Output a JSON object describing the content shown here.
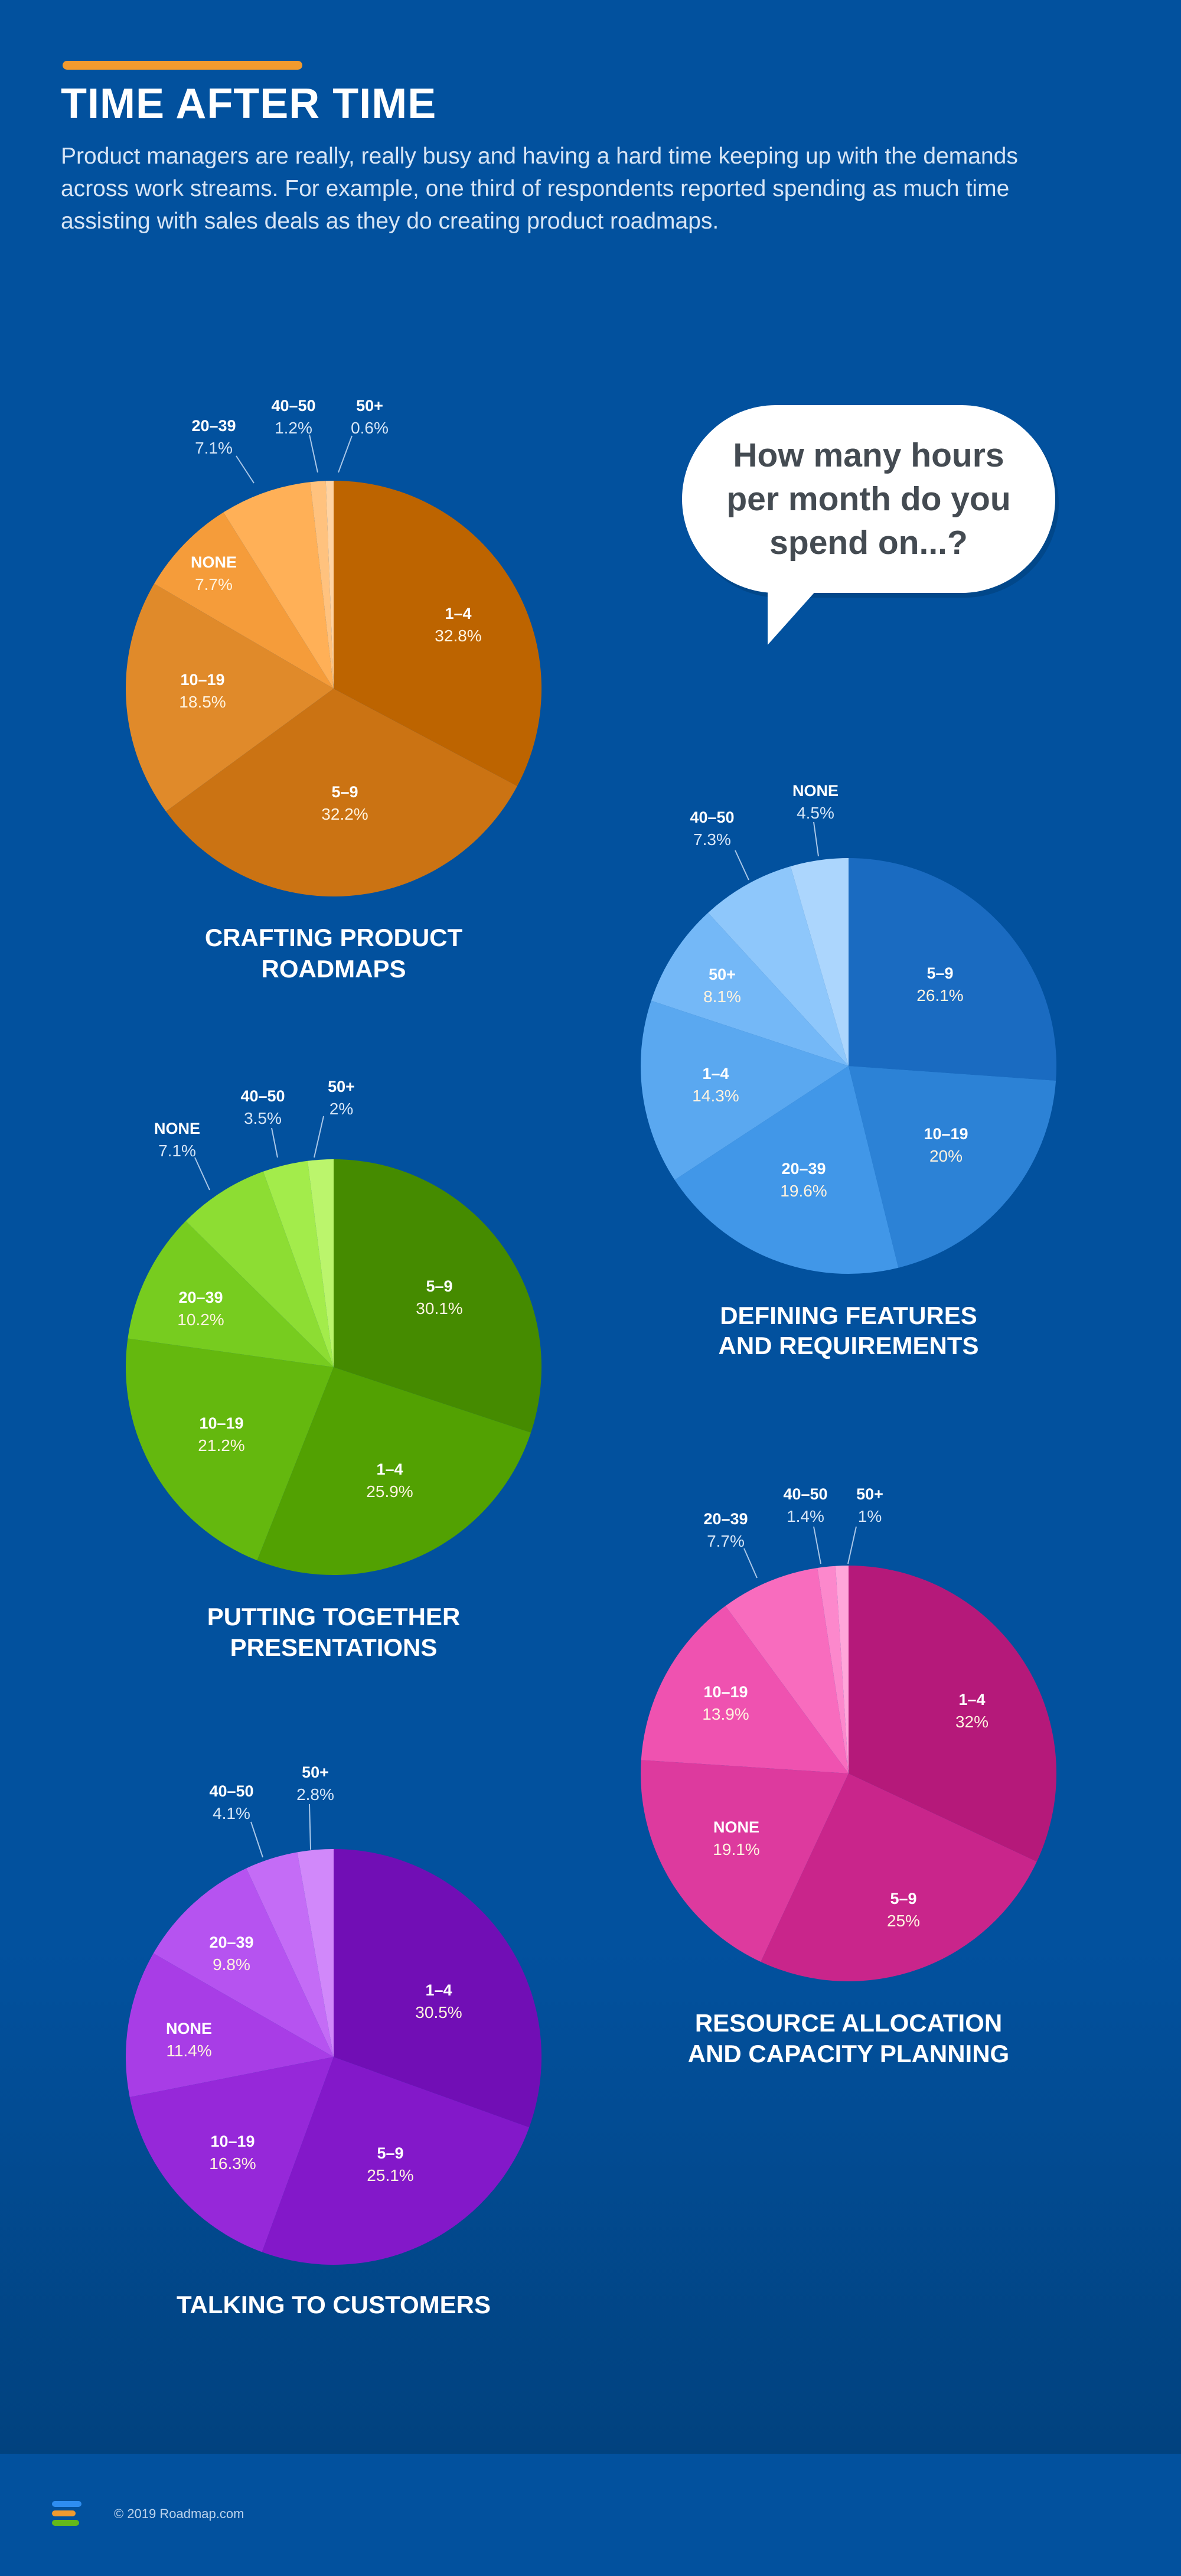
{
  "header": {
    "title": "TIME AFTER TIME",
    "subtitle": "Product managers are really, really busy and having a hard time keeping up with the demands across work streams. For example, one third of respondents reported spending as much time assisting with sales deals as they do creating product roadmaps."
  },
  "bubble": {
    "question": "How many hours per month do you spend on...?"
  },
  "footer": {
    "copyright": "© 2019 Roadmap.com"
  },
  "chart_data": [
    {
      "type": "pie",
      "title": "CRAFTING PRODUCT ROADMAPS",
      "unit": "%",
      "slices": [
        {
          "label": "1–4",
          "value": 32.8,
          "color": "#bd6400"
        },
        {
          "label": "5–9",
          "value": 32.2,
          "color": "#cb7313"
        },
        {
          "label": "10–19",
          "value": 18.5,
          "color": "#e08a2a"
        },
        {
          "label": "NONE",
          "value": 7.7,
          "color": "#f59c3a"
        },
        {
          "label": "20–39",
          "value": 7.1,
          "color": "#ffb057"
        },
        {
          "label": "40–50",
          "value": 1.2,
          "color": "#ffc27e"
        },
        {
          "label": "50+",
          "value": 0.6,
          "color": "#ffd3a2"
        }
      ]
    },
    {
      "type": "pie",
      "title": "DEFINING FEATURES AND REQUIREMENTS",
      "unit": "%",
      "slices": [
        {
          "label": "5–9",
          "value": 26.1,
          "color": "#1a6bc1"
        },
        {
          "label": "10–19",
          "value": 20,
          "color": "#2c82d6"
        },
        {
          "label": "20–39",
          "value": 19.6,
          "color": "#4197e8"
        },
        {
          "label": "1–4",
          "value": 14.3,
          "color": "#5aa8f0"
        },
        {
          "label": "50+",
          "value": 8.1,
          "color": "#74b8f7"
        },
        {
          "label": "40–50",
          "value": 7.3,
          "color": "#8ec7fb"
        },
        {
          "label": "NONE",
          "value": 4.5,
          "color": "#acd6fd"
        }
      ]
    },
    {
      "type": "pie",
      "title": "PUTTING TOGETHER PRESENTATIONS",
      "unit": "%",
      "slices": [
        {
          "label": "5–9",
          "value": 30.1,
          "color": "#458b00"
        },
        {
          "label": "1–4",
          "value": 25.9,
          "color": "#52a102"
        },
        {
          "label": "10–19",
          "value": 21.2,
          "color": "#64b80e"
        },
        {
          "label": "20–39",
          "value": 10.2,
          "color": "#77cc1f"
        },
        {
          "label": "NONE",
          "value": 7.1,
          "color": "#8ddd33"
        },
        {
          "label": "40–50",
          "value": 3.5,
          "color": "#a3ec4b"
        },
        {
          "label": "50+",
          "value": 2,
          "color": "#bbf56c"
        }
      ]
    },
    {
      "type": "pie",
      "title": "RESOURCE ALLOCATION AND CAPACITY PLANNING",
      "unit": "%",
      "slices": [
        {
          "label": "1–4",
          "value": 32,
          "color": "#b5197a"
        },
        {
          "label": "5–9",
          "value": 25,
          "color": "#c9258b"
        },
        {
          "label": "NONE",
          "value": 19.1,
          "color": "#dd3a9e"
        },
        {
          "label": "10–19",
          "value": 13.9,
          "color": "#ef52b0"
        },
        {
          "label": "20–39",
          "value": 7.7,
          "color": "#f86cbe"
        },
        {
          "label": "40–50",
          "value": 1.4,
          "color": "#fc88cc"
        },
        {
          "label": "50+",
          "value": 1,
          "color": "#ffa6da"
        }
      ]
    },
    {
      "type": "pie",
      "title": "TALKING TO CUSTOMERS",
      "unit": "%",
      "slices": [
        {
          "label": "1–4",
          "value": 30.5,
          "color": "#710eb5"
        },
        {
          "label": "5–9",
          "value": 25.1,
          "color": "#8318c9"
        },
        {
          "label": "10–19",
          "value": 16.3,
          "color": "#9628d9"
        },
        {
          "label": "NONE",
          "value": 11.4,
          "color": "#a83de6"
        },
        {
          "label": "20–39",
          "value": 9.8,
          "color": "#b653f0"
        },
        {
          "label": "40–50",
          "value": 4.1,
          "color": "#c46cf6"
        },
        {
          "label": "50+",
          "value": 2.8,
          "color": "#d188fa"
        }
      ]
    }
  ]
}
